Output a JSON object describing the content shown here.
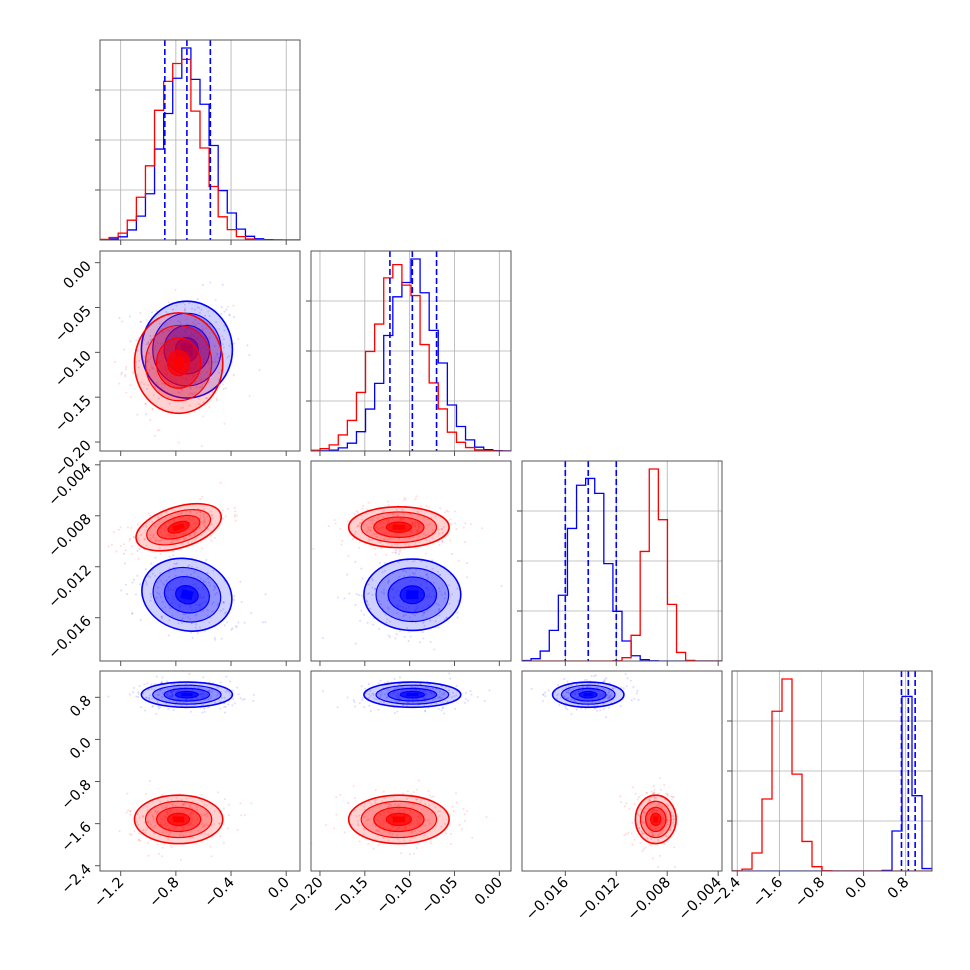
{
  "chart_data": {
    "type": "corner",
    "parameters": 4,
    "grid": true,
    "colors": {
      "series_a": "#0000ff",
      "series_b": "#ff0000",
      "frame": "#555555",
      "grid": "#b0b0b0"
    },
    "axes": [
      {
        "range": [
          -1.35,
          0.1
        ],
        "ticks": [
          -1.2,
          -0.8,
          -0.4,
          0.0
        ],
        "tick_labels": [
          "−1.2",
          "−0.8",
          "−0.4",
          "0.0"
        ]
      },
      {
        "range": [
          -0.21,
          0.013
        ],
        "ticks": [
          -0.2,
          -0.15,
          -0.1,
          -0.05,
          0.0
        ],
        "tick_labels": [
          "−0.20",
          "−0.15",
          "−0.10",
          "−0.05",
          "0.00"
        ]
      },
      {
        "range": [
          -0.0194,
          -0.0037
        ],
        "ticks": [
          -0.016,
          -0.012,
          -0.008,
          -0.004
        ],
        "tick_labels": [
          "−0.016",
          "−0.012",
          "−0.008",
          "−0.004"
        ]
      },
      {
        "range": [
          -2.5,
          1.3
        ],
        "ticks": [
          -2.4,
          -1.6,
          -0.8,
          0.0,
          0.8
        ],
        "tick_labels": [
          "−2.4",
          "−1.6",
          "−0.8",
          "0.0",
          "0.8"
        ]
      }
    ],
    "series": [
      {
        "color": "#0000ff",
        "mean": [
          -0.72,
          -0.097,
          -0.0142,
          0.85
        ],
        "sd": [
          0.165,
          0.027,
          0.0014,
          0.12
        ],
        "corr_1_3": -0.4,
        "quantiles": [
          [
            -0.88,
            -0.72,
            -0.55
          ],
          [
            -0.122,
            -0.097,
            -0.07
          ],
          [
            -0.016,
            -0.0142,
            -0.012
          ],
          [
            0.72,
            0.85,
            0.98
          ]
        ]
      },
      {
        "color": "#ff0000",
        "mean": [
          -0.78,
          -0.112,
          -0.0089,
          -1.52
        ],
        "sd": [
          0.16,
          0.028,
          0.0008,
          0.23
        ],
        "corr_1_3": 0.5
      }
    ]
  }
}
